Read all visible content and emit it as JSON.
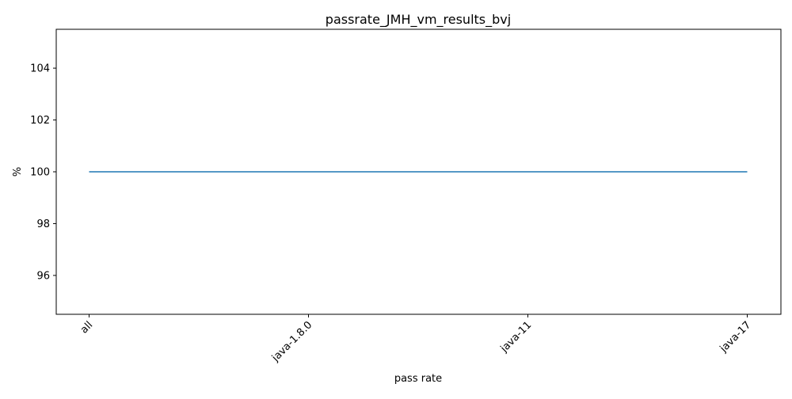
{
  "chart_data": {
    "type": "line",
    "title": "passrate_JMH_vm_results_bvj",
    "xlabel": "pass rate",
    "ylabel": "%",
    "categories": [
      "all",
      "java-1.8.0",
      "java-11",
      "java-17"
    ],
    "series": [
      {
        "values": [
          100,
          100,
          100,
          100
        ],
        "color": "#1f77b4"
      }
    ],
    "ylim": [
      94.5,
      105.5
    ],
    "yticks": [
      "96",
      "98",
      "100",
      "102",
      "104"
    ],
    "grid": false,
    "legend": "none"
  }
}
